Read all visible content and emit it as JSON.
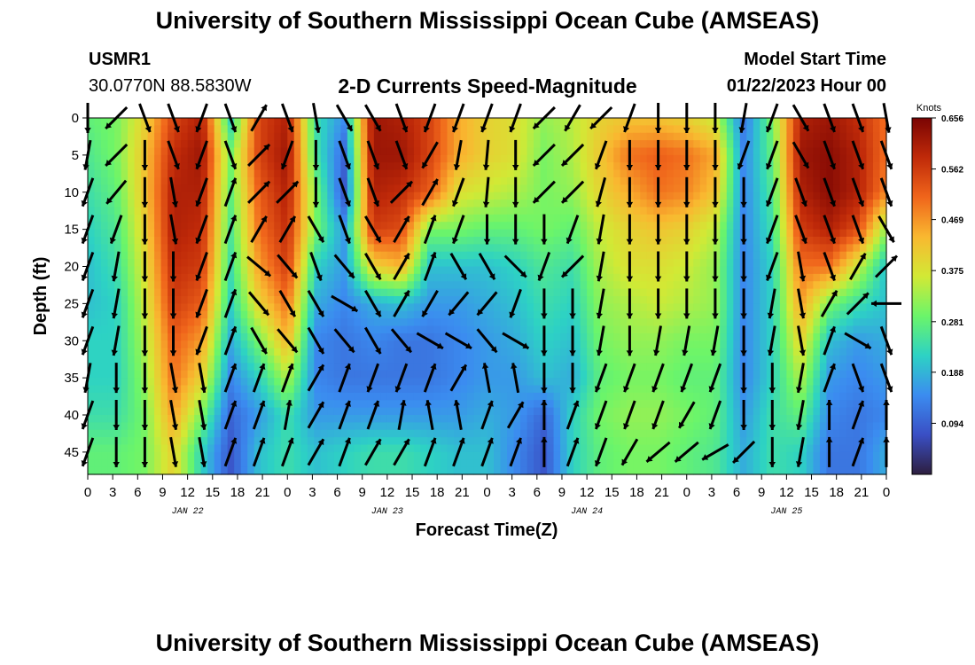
{
  "header": {
    "title": "University of Southern Mississippi Ocean Cube (AMSEAS)",
    "station_id": "USMR1",
    "location": "30.0770N  88.5830W",
    "subtitle": "2-D Currents Speed-Magnitude",
    "model_start_label": "Model Start Time",
    "model_start_value": "01/22/2023 Hour 00"
  },
  "footer": {
    "title": "University of Southern Mississippi Ocean Cube (AMSEAS)"
  },
  "colors": {
    "colormap": [
      "#2d1e3e",
      "#3a4fc4",
      "#3b8cf0",
      "#2dd2c4",
      "#6bf56a",
      "#d2e935",
      "#f9b830",
      "#f0651b",
      "#c02a09",
      "#7a0403"
    ],
    "arrow": "#000000"
  },
  "chart_data": {
    "type": "heatmap",
    "xlabel": "Forecast Time(Z)",
    "ylabel": "Depth (ft)",
    "x_ticks": [
      "0",
      "3",
      "6",
      "9",
      "12",
      "15",
      "18",
      "21",
      "0",
      "3",
      "6",
      "9",
      "12",
      "15",
      "18",
      "21",
      "0",
      "3",
      "6",
      "9",
      "12",
      "15",
      "18",
      "21",
      "0",
      "3",
      "6",
      "9",
      "12",
      "15",
      "18",
      "21",
      "0"
    ],
    "date_labels": [
      "JAN 22",
      "JAN 23",
      "JAN 24",
      "JAN 25"
    ],
    "y_ticks": [
      "0",
      "5",
      "10",
      "15",
      "20",
      "25",
      "30",
      "35",
      "40",
      "45"
    ],
    "ylim": [
      0,
      48
    ],
    "xlim_hours": [
      0,
      96
    ],
    "colorbar": {
      "label": "Knots",
      "ticks": [
        "0.656",
        "0.562",
        "0.469",
        "0.375",
        "0.281",
        "0.188",
        "0.094"
      ],
      "range": [
        0.0,
        0.656
      ]
    },
    "depths_ft": [
      0,
      5,
      10,
      15,
      20,
      25,
      30,
      35,
      40,
      45
    ],
    "speed_knots_by_depth": [
      [
        0.28,
        0.3,
        0.4,
        0.55,
        0.6,
        0.22,
        0.55,
        0.6,
        0.24,
        0.15,
        0.62,
        0.6,
        0.55,
        0.45,
        0.4,
        0.38,
        0.32,
        0.35,
        0.4,
        0.42,
        0.42,
        0.4,
        0.36,
        0.12,
        0.3,
        0.6,
        0.62,
        0.58,
        0.5
      ],
      [
        0.26,
        0.3,
        0.42,
        0.58,
        0.62,
        0.3,
        0.55,
        0.62,
        0.25,
        0.1,
        0.62,
        0.62,
        0.55,
        0.45,
        0.4,
        0.38,
        0.3,
        0.34,
        0.42,
        0.5,
        0.52,
        0.5,
        0.45,
        0.14,
        0.28,
        0.62,
        0.64,
        0.6,
        0.5
      ],
      [
        0.24,
        0.28,
        0.42,
        0.6,
        0.6,
        0.28,
        0.52,
        0.6,
        0.3,
        0.08,
        0.6,
        0.58,
        0.52,
        0.38,
        0.36,
        0.34,
        0.3,
        0.32,
        0.4,
        0.45,
        0.5,
        0.48,
        0.42,
        0.14,
        0.26,
        0.6,
        0.64,
        0.6,
        0.48
      ],
      [
        0.22,
        0.26,
        0.4,
        0.6,
        0.58,
        0.26,
        0.5,
        0.58,
        0.3,
        0.16,
        0.56,
        0.54,
        0.3,
        0.3,
        0.28,
        0.28,
        0.3,
        0.28,
        0.36,
        0.4,
        0.42,
        0.4,
        0.35,
        0.14,
        0.24,
        0.56,
        0.6,
        0.54,
        0.32
      ],
      [
        0.2,
        0.24,
        0.38,
        0.58,
        0.56,
        0.24,
        0.46,
        0.56,
        0.22,
        0.16,
        0.4,
        0.44,
        0.2,
        0.2,
        0.2,
        0.22,
        0.26,
        0.24,
        0.34,
        0.38,
        0.38,
        0.36,
        0.32,
        0.14,
        0.22,
        0.5,
        0.5,
        0.36,
        0.2
      ],
      [
        0.2,
        0.22,
        0.36,
        0.56,
        0.52,
        0.22,
        0.4,
        0.5,
        0.18,
        0.14,
        0.18,
        0.2,
        0.16,
        0.16,
        0.18,
        0.2,
        0.24,
        0.22,
        0.32,
        0.34,
        0.36,
        0.34,
        0.32,
        0.14,
        0.22,
        0.46,
        0.3,
        0.24,
        0.2
      ],
      [
        0.22,
        0.22,
        0.34,
        0.52,
        0.46,
        0.18,
        0.3,
        0.44,
        0.14,
        0.12,
        0.14,
        0.12,
        0.12,
        0.14,
        0.16,
        0.18,
        0.22,
        0.2,
        0.3,
        0.32,
        0.32,
        0.3,
        0.3,
        0.14,
        0.22,
        0.4,
        0.2,
        0.16,
        0.18
      ],
      [
        0.22,
        0.22,
        0.32,
        0.5,
        0.4,
        0.14,
        0.22,
        0.34,
        0.14,
        0.12,
        0.12,
        0.12,
        0.12,
        0.14,
        0.16,
        0.16,
        0.2,
        0.18,
        0.28,
        0.3,
        0.3,
        0.28,
        0.28,
        0.14,
        0.22,
        0.34,
        0.16,
        0.14,
        0.16
      ],
      [
        0.24,
        0.24,
        0.3,
        0.46,
        0.3,
        0.1,
        0.16,
        0.24,
        0.16,
        0.16,
        0.16,
        0.16,
        0.16,
        0.16,
        0.18,
        0.16,
        0.1,
        0.22,
        0.3,
        0.32,
        0.32,
        0.3,
        0.28,
        0.16,
        0.24,
        0.28,
        0.14,
        0.12,
        0.14
      ],
      [
        0.28,
        0.28,
        0.3,
        0.4,
        0.22,
        0.08,
        0.2,
        0.24,
        0.2,
        0.22,
        0.24,
        0.24,
        0.22,
        0.2,
        0.2,
        0.14,
        0.08,
        0.22,
        0.28,
        0.3,
        0.3,
        0.28,
        0.26,
        0.18,
        0.24,
        0.22,
        0.12,
        0.12,
        0.18
      ]
    ],
    "direction_deg_by_depth": [
      [
        180,
        225,
        160,
        160,
        200,
        160,
        30,
        160,
        170,
        150,
        150,
        160,
        200,
        200,
        200,
        200,
        225,
        210,
        225,
        200,
        180,
        180,
        180,
        190,
        200,
        150,
        160,
        160,
        170
      ],
      [
        190,
        225,
        180,
        160,
        200,
        160,
        45,
        200,
        180,
        160,
        160,
        160,
        210,
        190,
        185,
        180,
        225,
        225,
        200,
        180,
        180,
        180,
        180,
        200,
        200,
        150,
        160,
        160,
        160
      ],
      [
        200,
        220,
        180,
        170,
        200,
        20,
        45,
        45,
        180,
        160,
        160,
        45,
        30,
        200,
        185,
        180,
        225,
        225,
        195,
        180,
        180,
        180,
        180,
        180,
        200,
        160,
        160,
        160,
        160
      ],
      [
        200,
        200,
        180,
        170,
        200,
        20,
        30,
        30,
        150,
        160,
        150,
        30,
        20,
        200,
        180,
        180,
        180,
        200,
        190,
        180,
        180,
        180,
        180,
        180,
        200,
        160,
        160,
        160,
        150
      ],
      [
        200,
        190,
        180,
        180,
        200,
        20,
        130,
        140,
        160,
        140,
        150,
        30,
        20,
        150,
        150,
        135,
        200,
        225,
        190,
        180,
        180,
        180,
        180,
        180,
        200,
        170,
        160,
        30,
        45
      ],
      [
        200,
        190,
        180,
        180,
        200,
        20,
        140,
        150,
        150,
        120,
        150,
        30,
        210,
        220,
        220,
        200,
        180,
        180,
        190,
        180,
        180,
        180,
        180,
        180,
        190,
        170,
        30,
        45,
        270
      ],
      [
        200,
        190,
        180,
        180,
        200,
        20,
        150,
        140,
        150,
        140,
        150,
        140,
        120,
        120,
        140,
        120,
        180,
        180,
        190,
        180,
        190,
        190,
        190,
        180,
        190,
        170,
        20,
        120,
        160
      ],
      [
        190,
        180,
        180,
        170,
        170,
        20,
        20,
        20,
        30,
        20,
        200,
        200,
        20,
        30,
        350,
        350,
        180,
        180,
        200,
        200,
        200,
        200,
        200,
        180,
        180,
        190,
        20,
        160,
        160
      ],
      [
        200,
        180,
        180,
        170,
        170,
        20,
        20,
        10,
        30,
        20,
        20,
        10,
        350,
        350,
        20,
        30,
        0,
        20,
        200,
        200,
        200,
        210,
        200,
        180,
        180,
        190,
        0,
        20,
        0
      ],
      [
        200,
        180,
        180,
        170,
        170,
        20,
        20,
        20,
        30,
        20,
        30,
        30,
        20,
        20,
        20,
        20,
        0,
        20,
        200,
        210,
        230,
        230,
        240,
        225,
        180,
        190,
        0,
        20,
        0
      ]
    ]
  }
}
